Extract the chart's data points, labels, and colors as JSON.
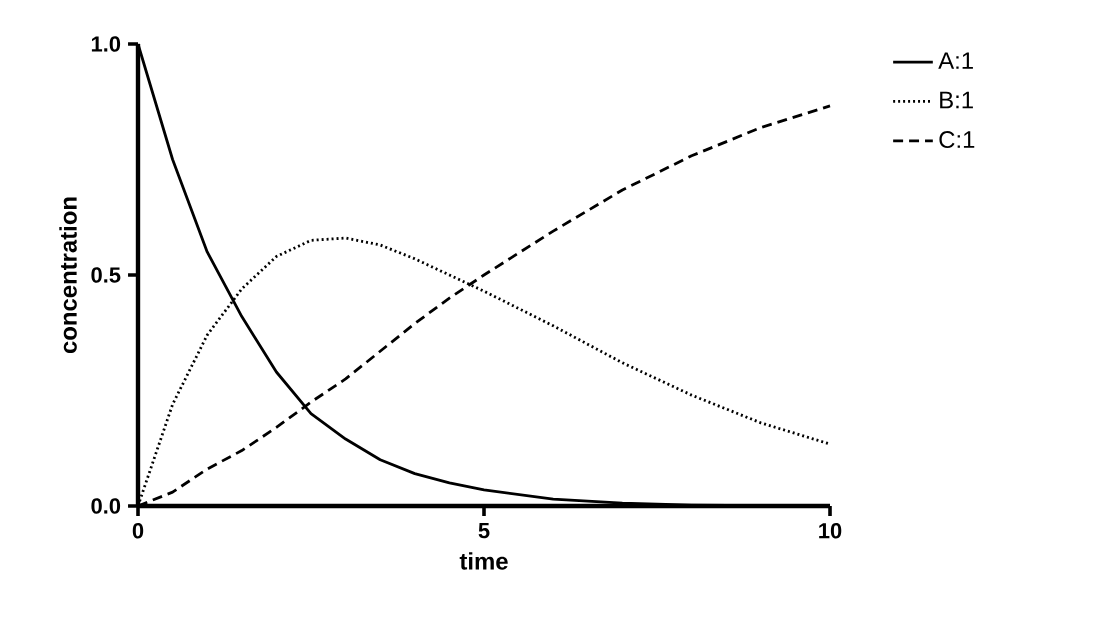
{
  "chart_data": {
    "type": "line",
    "xlabel": "time",
    "ylabel": "concentration",
    "x": [
      0,
      0.5,
      1,
      1.5,
      2,
      2.5,
      3,
      3.5,
      4,
      4.5,
      5,
      6,
      7,
      8,
      9,
      10
    ],
    "series": [
      {
        "name": "A:1",
        "color": "#000000",
        "line_style": "solid",
        "values": [
          1,
          0.75,
          0.55,
          0.41,
          0.29,
          0.2,
          0.145,
          0.1,
          0.07,
          0.05,
          0.035,
          0.015,
          0.006,
          0.002,
          0.001,
          0
        ]
      },
      {
        "name": "B:1",
        "color": "#000000",
        "line_style": "dotted",
        "values": [
          0,
          0.22,
          0.37,
          0.47,
          0.54,
          0.575,
          0.58,
          0.565,
          0.535,
          0.5,
          0.465,
          0.39,
          0.31,
          0.24,
          0.18,
          0.134
        ]
      },
      {
        "name": "C:1",
        "color": "#000000",
        "line_style": "dashed",
        "values": [
          0,
          0.03,
          0.08,
          0.12,
          0.17,
          0.225,
          0.275,
          0.335,
          0.395,
          0.45,
          0.5,
          0.595,
          0.684,
          0.758,
          0.819,
          0.866
        ]
      }
    ],
    "xlim": [
      0,
      10
    ],
    "ylim": [
      0,
      1
    ],
    "xticks": [
      0,
      5,
      10
    ],
    "yticks": [
      {
        "value": 0,
        "label": "0.0"
      },
      {
        "value": 0.5,
        "label": "0.5"
      },
      {
        "value": 1,
        "label": "1.0"
      }
    ],
    "legend": "top right",
    "marker": "none",
    "grid": false
  }
}
